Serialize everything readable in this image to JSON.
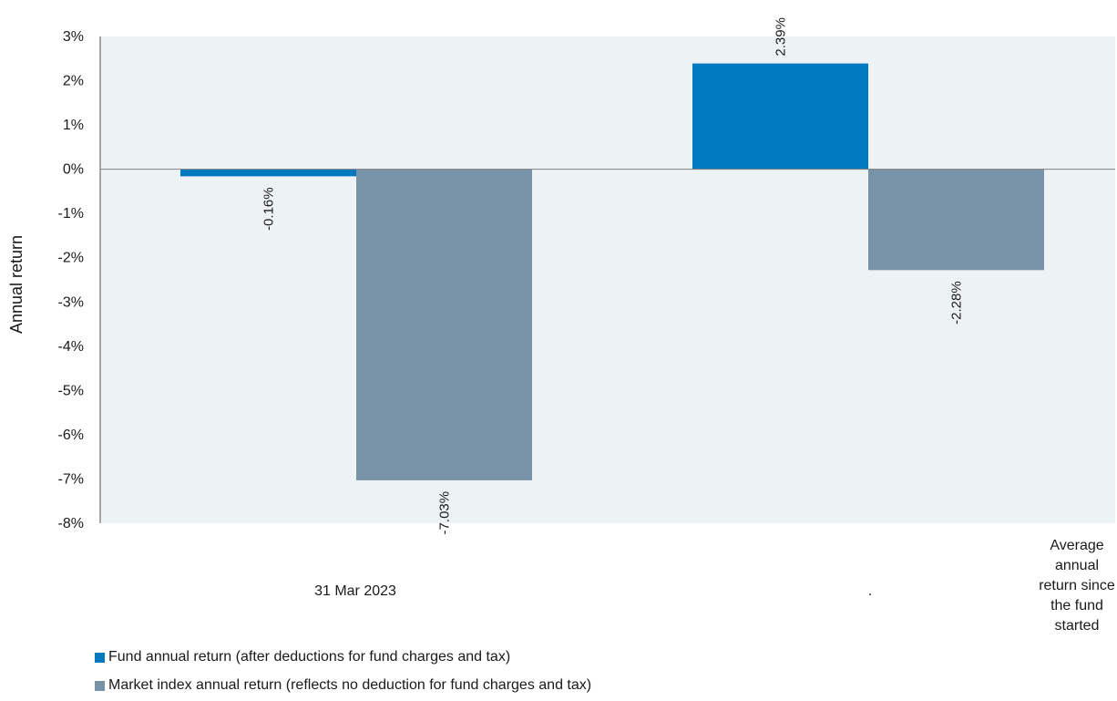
{
  "chart_data": {
    "type": "bar",
    "categories": [
      "31 Mar 2023",
      "."
    ],
    "series": [
      {
        "name": "Fund annual return (after deductions for fund charges and tax)",
        "values": [
          -0.16,
          2.39
        ],
        "labels": [
          "-0.16%",
          "2.39%"
        ],
        "color": "#0079bf"
      },
      {
        "name": "Market index annual return (reflects no deduction for fund charges and tax)",
        "values": [
          -7.03,
          -2.28
        ],
        "labels": [
          "-7.03%",
          "-2.28%"
        ],
        "color": "#7893a7"
      }
    ],
    "ylabel": "Annual return",
    "ylim": [
      -8,
      3
    ],
    "yticks": [
      3,
      2,
      1,
      0,
      -1,
      -2,
      -3,
      -4,
      -5,
      -6,
      -7,
      -8
    ],
    "ytick_labels": [
      "3%",
      "2%",
      "1%",
      "0%",
      "-1%",
      "-2%",
      "-3%",
      "-4%",
      "-5%",
      "-6%",
      "-7%",
      "-8%"
    ],
    "side_note": "Average annual return since the fund started",
    "plot_background": "#edf2f5",
    "legend_position": "bottom-left"
  }
}
